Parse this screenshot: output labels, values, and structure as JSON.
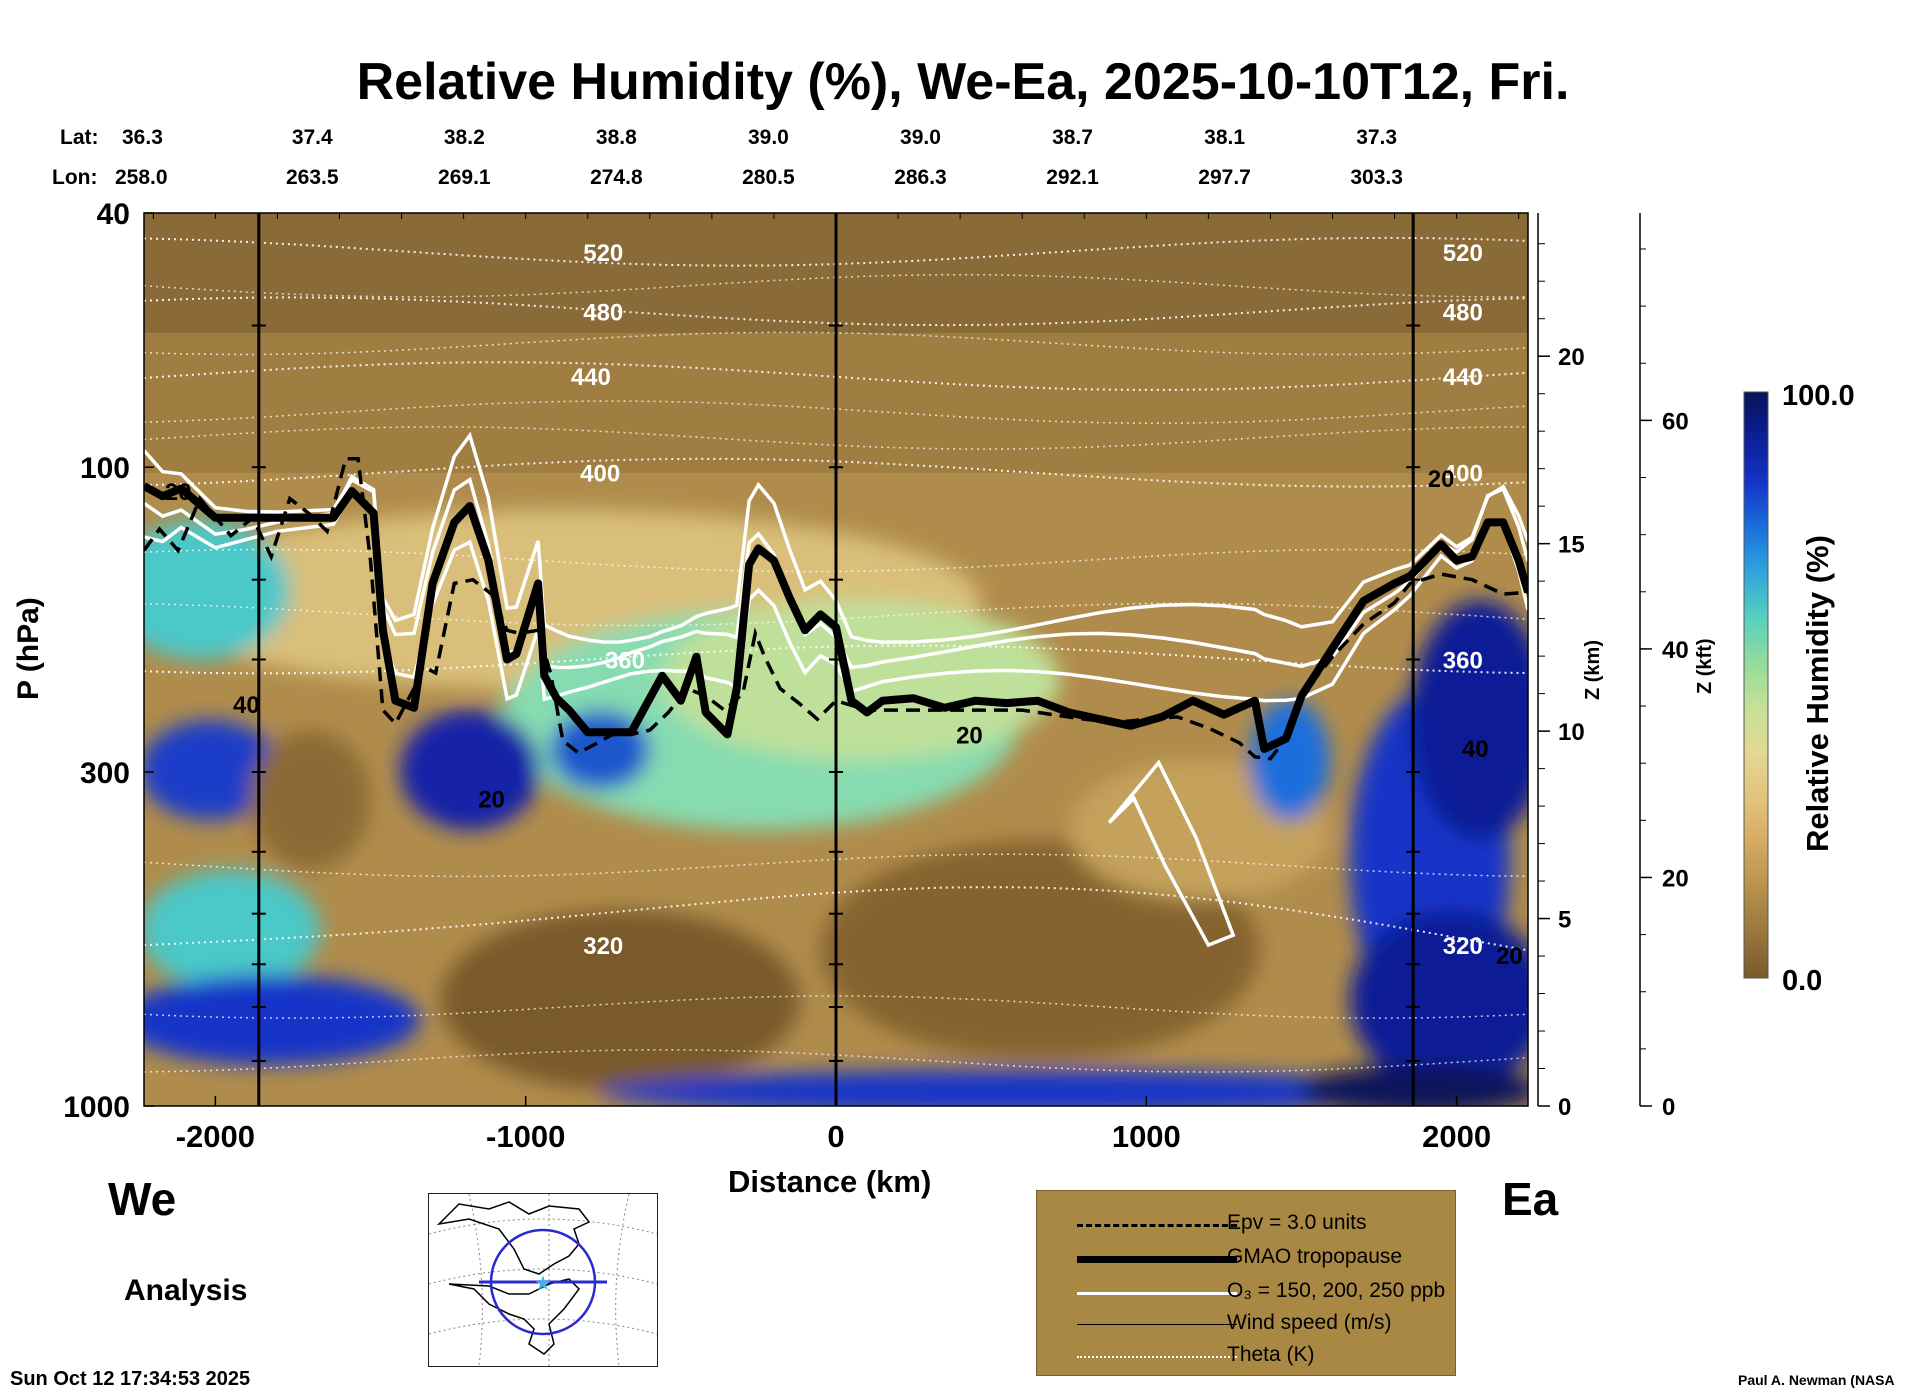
{
  "chart_data": {
    "type": "heatmap",
    "title": "Relative Humidity (%), We-Ea, 2025-10-10T12, Fri.",
    "xlabel": "Distance (km)",
    "ylabel": "P (hPa)",
    "y2label": "Z (km)",
    "y3label": "Z (kft)",
    "xlim": [
      -2230,
      2230
    ],
    "ylim": [
      1000,
      40
    ],
    "x_ticks": [
      -2000,
      -1000,
      0,
      1000,
      2000
    ],
    "x_tick_labels": [
      "-2000",
      "-1000",
      "0",
      "1000",
      "2000"
    ],
    "p_ticks": [
      40,
      100,
      300,
      1000
    ],
    "p_tick_labels": [
      "40",
      "100",
      "300",
      "1000"
    ],
    "z_km_ticks": [
      0,
      5,
      10,
      15,
      20
    ],
    "z_km_tick_labels": [
      "0",
      "5",
      "10",
      "15",
      "20"
    ],
    "z_kft_ticks": [
      0,
      20,
      40,
      60
    ],
    "z_kft_tick_labels": [
      "0",
      "20",
      "40",
      "60"
    ],
    "lat_label": "Lat:",
    "lon_label": "Lon:",
    "lats": [
      "36.3",
      "37.4",
      "38.2",
      "38.8",
      "39.0",
      "39.0",
      "38.7",
      "38.1",
      "37.3"
    ],
    "lons": [
      "258.0",
      "263.5",
      "269.1",
      "274.8",
      "280.5",
      "286.3",
      "292.1",
      "297.7",
      "303.3"
    ],
    "label_positions_km": [
      -2230,
      -1720,
      -1230,
      -740,
      -250,
      240,
      730,
      1220,
      1710
    ],
    "vertical_markers_km": [
      -1860,
      0,
      1860
    ],
    "theta_levels": [
      {
        "value": 320,
        "p": 560,
        "label": "320"
      },
      {
        "value": 360,
        "p": 200,
        "label": "360"
      },
      {
        "value": 400,
        "p": 102,
        "label": "400"
      },
      {
        "value": 440,
        "p": 72,
        "label": "440"
      },
      {
        "value": 480,
        "p": 57,
        "label": "480"
      },
      {
        "value": 520,
        "p": 46,
        "label": "520"
      }
    ],
    "wind_labels": [
      {
        "label": "20",
        "km": -2120,
        "p": 109
      },
      {
        "label": "40",
        "km": -1900,
        "p": 235
      },
      {
        "label": "20",
        "km": -1110,
        "p": 330
      },
      {
        "label": "20",
        "km": 430,
        "p": 262
      },
      {
        "label": "20",
        "km": 1950,
        "p": 104
      },
      {
        "label": "40",
        "km": 2060,
        "p": 275
      },
      {
        "label": "20",
        "km": 2170,
        "p": 580
      }
    ],
    "tropopause": {
      "x": [
        -2230,
        -2170,
        -2110,
        -2000,
        -1900,
        -1800,
        -1620,
        -1560,
        -1490,
        -1460,
        -1420,
        -1360,
        -1300,
        -1230,
        -1180,
        -1120,
        -1060,
        -1030,
        -960,
        -940,
        -900,
        -860,
        -800,
        -750,
        -700,
        -660,
        -600,
        -560,
        -500,
        -450,
        -420,
        -350,
        -320,
        -280,
        -250,
        -200,
        -150,
        -100,
        -50,
        0,
        50,
        100,
        150,
        250,
        350,
        450,
        550,
        650,
        750,
        850,
        950,
        1050,
        1150,
        1250,
        1350,
        1380,
        1450,
        1500,
        1600,
        1700,
        1800,
        1850,
        1950,
        2000,
        2050,
        2100,
        2150,
        2200,
        2230
      ],
      "p": [
        107,
        111,
        108,
        120,
        120,
        120,
        120,
        109,
        118,
        180,
        232,
        238,
        152,
        122,
        115,
        140,
        200,
        196,
        152,
        212,
        230,
        240,
        260,
        260,
        260,
        260,
        230,
        212,
        232,
        198,
        242,
        262,
        222,
        142,
        134,
        140,
        160,
        180,
        170,
        178,
        232,
        242,
        232,
        230,
        238,
        232,
        234,
        232,
        242,
        248,
        254,
        246,
        232,
        244,
        232,
        276,
        266,
        228,
        192,
        162,
        152,
        148,
        132,
        140,
        138,
        122,
        122,
        140,
        157
      ]
    },
    "epv": {
      "x": [
        -2230,
        -2180,
        -2120,
        -2050,
        -1950,
        -1880,
        -1820,
        -1760,
        -1700,
        -1640,
        -1580,
        -1540,
        -1500,
        -1460,
        -1420,
        -1360,
        -1330,
        -1290,
        -1230,
        -1170,
        -1110,
        -1060,
        -1020,
        -960,
        -920,
        -880,
        -830,
        -780,
        -720,
        -660,
        -600,
        -540,
        -480,
        -420,
        -360,
        -300,
        -260,
        -230,
        -180,
        -120,
        -60,
        0,
        100,
        200,
        400,
        600,
        700,
        800,
        900,
        1000,
        1100,
        1200,
        1300,
        1350,
        1400,
        1450,
        1500,
        1600,
        1700,
        1800,
        1850,
        1950,
        2050,
        2150,
        2230
      ],
      "p": [
        135,
        125,
        135,
        112,
        128,
        120,
        138,
        112,
        118,
        126,
        97,
        97,
        140,
        240,
        252,
        222,
        205,
        210,
        152,
        150,
        158,
        180,
        182,
        180,
        210,
        268,
        280,
        272,
        262,
        262,
        258,
        242,
        222,
        228,
        240,
        226,
        182,
        198,
        222,
        234,
        248,
        232,
        240,
        240,
        240,
        240,
        244,
        248,
        251,
        248,
        246,
        256,
        270,
        284,
        286,
        266,
        228,
        198,
        176,
        163,
        152,
        147,
        150,
        158,
        157
      ]
    },
    "series": [
      {
        "name": "Epv = 3.0 units",
        "style": "dashed"
      },
      {
        "name": "GMAO tropopause",
        "style": "thick"
      },
      {
        "name": "O₃ = 150, 200, 250 ppb",
        "style": "white"
      },
      {
        "name": "Wind speed (m/s)",
        "style": "thin"
      },
      {
        "name": "Theta (K)",
        "style": "dotted"
      }
    ],
    "colorbar": {
      "label": "Relative Humidity (%)",
      "min": 0.0,
      "max": 100.0,
      "min_label": "0.0",
      "max_label": "100.0",
      "colors": [
        "#7a5a2c",
        "#98763c",
        "#b8924c",
        "#d4aa60",
        "#e3c47c",
        "#e3d894",
        "#c6e096",
        "#92dc9c",
        "#58cfc0",
        "#2ea6dc",
        "#1b6edc",
        "#1434c8",
        "#0e1e96",
        "#08145a"
      ]
    },
    "colors": {
      "field_bg": "#a48246",
      "legend_bg": "#a98844"
    }
  },
  "page": {
    "left_label": "We",
    "right_label": "Ea",
    "analysis": "Analysis",
    "timestamp": "Sun Oct 12 17:34:53 2025",
    "credit": "Paul A. Newman (NASA"
  }
}
